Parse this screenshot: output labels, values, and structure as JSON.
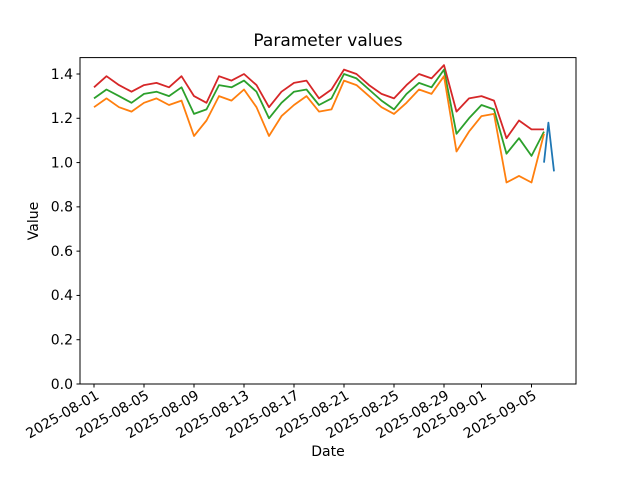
{
  "chart_data": {
    "type": "line",
    "title": "Parameter values",
    "xlabel": "Date",
    "ylabel": "Value",
    "ylim": [
      0,
      1.47
    ],
    "grid": false,
    "legend": "none",
    "yticks": [
      0.0,
      0.2,
      0.4,
      0.6,
      0.8,
      1.0,
      1.2,
      1.4
    ],
    "xtick_labels": [
      "2025-08-01",
      "2025-08-05",
      "2025-08-09",
      "2025-08-13",
      "2025-08-17",
      "2025-08-21",
      "2025-08-25",
      "2025-08-29",
      "2025-09-01",
      "2025-09-05"
    ],
    "x_start_date": "2025-08-01",
    "x_unit": "days from 2025-08-01",
    "series": [
      {
        "name": "red",
        "color": "#d62728",
        "x_start_day": 0,
        "x_step_days": 1,
        "values": [
          1.34,
          1.39,
          1.35,
          1.32,
          1.35,
          1.36,
          1.34,
          1.39,
          1.3,
          1.27,
          1.39,
          1.37,
          1.4,
          1.35,
          1.25,
          1.32,
          1.36,
          1.37,
          1.29,
          1.33,
          1.42,
          1.4,
          1.35,
          1.31,
          1.29,
          1.35,
          1.4,
          1.38,
          1.44,
          1.23,
          1.29,
          1.3,
          1.28,
          1.11,
          1.19,
          1.15,
          1.15
        ]
      },
      {
        "name": "green",
        "color": "#2ca02c",
        "x_start_day": 0,
        "x_step_days": 1,
        "values": [
          1.29,
          1.33,
          1.3,
          1.27,
          1.31,
          1.32,
          1.3,
          1.34,
          1.22,
          1.24,
          1.35,
          1.34,
          1.37,
          1.32,
          1.2,
          1.27,
          1.32,
          1.33,
          1.26,
          1.29,
          1.4,
          1.38,
          1.33,
          1.28,
          1.24,
          1.31,
          1.36,
          1.34,
          1.42,
          1.13,
          1.2,
          1.26,
          1.24,
          1.04,
          1.11,
          1.03,
          1.14
        ]
      },
      {
        "name": "orange",
        "color": "#ff7f0e",
        "x_start_day": 0,
        "x_step_days": 1,
        "values": [
          1.25,
          1.29,
          1.25,
          1.23,
          1.27,
          1.29,
          1.26,
          1.28,
          1.12,
          1.19,
          1.3,
          1.28,
          1.33,
          1.25,
          1.12,
          1.21,
          1.26,
          1.3,
          1.23,
          1.24,
          1.37,
          1.35,
          1.3,
          1.25,
          1.22,
          1.27,
          1.33,
          1.31,
          1.39,
          1.05,
          1.14,
          1.21,
          1.22,
          0.91,
          0.94,
          0.91,
          1.13
        ]
      },
      {
        "name": "blue",
        "color": "#1f77b4",
        "x_days": [
          36.0,
          36.35,
          36.8
        ],
        "values": [
          1.0,
          1.18,
          0.96
        ]
      }
    ]
  }
}
